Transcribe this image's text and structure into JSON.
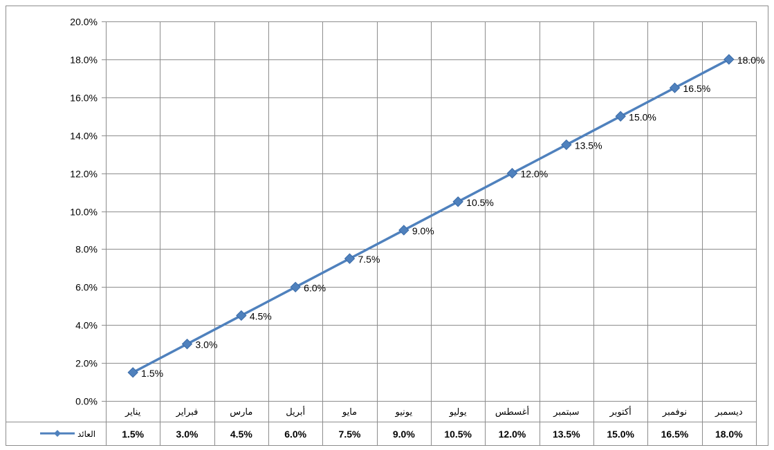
{
  "chart_data": {
    "type": "line",
    "categories": [
      "يناير",
      "فبراير",
      "مارس",
      "أبريل",
      "مايو",
      "يونيو",
      "يوليو",
      "أغسطس",
      "سبتمبر",
      "أكتوبر",
      "نوفمبر",
      "ديسمبر"
    ],
    "series": [
      {
        "name": "العائد",
        "values": [
          1.5,
          3.0,
          4.5,
          6.0,
          7.5,
          9.0,
          10.5,
          12.0,
          13.5,
          15.0,
          16.5,
          18.0
        ],
        "labels": [
          "1.5%",
          "3.0%",
          "4.5%",
          "6.0%",
          "7.5%",
          "9.0%",
          "10.5%",
          "12.0%",
          "13.5%",
          "15.0%",
          "16.5%",
          "18.0%"
        ],
        "color": "#4F81BD"
      }
    ],
    "ylim": [
      0,
      20
    ],
    "yticks": [
      "0.0%",
      "2.0%",
      "4.0%",
      "6.0%",
      "8.0%",
      "10.0%",
      "12.0%",
      "14.0%",
      "16.0%",
      "18.0%",
      "20.0%"
    ],
    "grid": true,
    "legend": "data-table-left",
    "data_table": true,
    "title": "",
    "xlabel": "",
    "ylabel": ""
  }
}
